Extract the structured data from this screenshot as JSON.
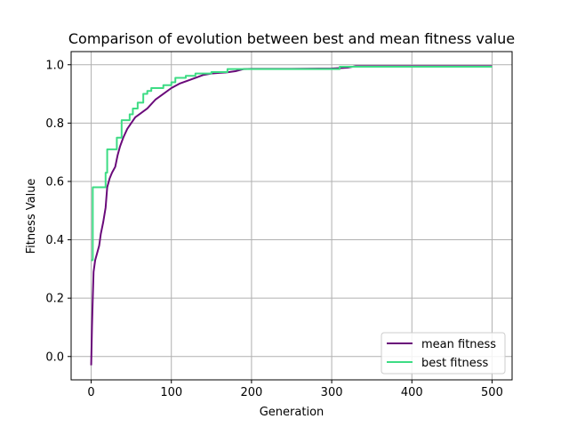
{
  "chart_data": {
    "type": "line",
    "title": "Comparison of evolution between best and mean fitness value",
    "xlabel": "Generation",
    "ylabel": "Fitness Value",
    "xlim": [
      -25,
      525
    ],
    "ylim": [
      -0.08,
      1.045
    ],
    "xticks": [
      0,
      100,
      200,
      300,
      400,
      500
    ],
    "xtick_labels": [
      "0",
      "100",
      "200",
      "300",
      "400",
      "500"
    ],
    "yticks": [
      0.0,
      0.2,
      0.4,
      0.6,
      0.8,
      1.0
    ],
    "ytick_labels": [
      "0.0",
      "0.2",
      "0.4",
      "0.6",
      "0.8",
      "1.0"
    ],
    "grid": true,
    "legend_position": "lower-right",
    "series": [
      {
        "name": "mean fitness",
        "color": "#6a0a7a",
        "step": false,
        "points": [
          [
            0,
            -0.03
          ],
          [
            1,
            0.1
          ],
          [
            2,
            0.2
          ],
          [
            3,
            0.29
          ],
          [
            5,
            0.33
          ],
          [
            8,
            0.36
          ],
          [
            10,
            0.38
          ],
          [
            12,
            0.42
          ],
          [
            15,
            0.46
          ],
          [
            18,
            0.51
          ],
          [
            20,
            0.58
          ],
          [
            23,
            0.61
          ],
          [
            26,
            0.63
          ],
          [
            30,
            0.65
          ],
          [
            33,
            0.69
          ],
          [
            36,
            0.72
          ],
          [
            40,
            0.75
          ],
          [
            45,
            0.78
          ],
          [
            50,
            0.8
          ],
          [
            55,
            0.82
          ],
          [
            60,
            0.83
          ],
          [
            70,
            0.85
          ],
          [
            80,
            0.88
          ],
          [
            90,
            0.9
          ],
          [
            100,
            0.92
          ],
          [
            110,
            0.935
          ],
          [
            120,
            0.945
          ],
          [
            130,
            0.955
          ],
          [
            140,
            0.965
          ],
          [
            150,
            0.97
          ],
          [
            160,
            0.972
          ],
          [
            170,
            0.974
          ],
          [
            180,
            0.978
          ],
          [
            190,
            0.985
          ],
          [
            200,
            0.986
          ],
          [
            250,
            0.986
          ],
          [
            300,
            0.987
          ],
          [
            320,
            0.99
          ],
          [
            330,
            0.995
          ],
          [
            400,
            0.995
          ],
          [
            500,
            0.995
          ]
        ]
      },
      {
        "name": "best fitness",
        "color": "#3ddc84",
        "step": true,
        "points": [
          [
            0,
            0.33
          ],
          [
            2,
            0.58
          ],
          [
            15,
            0.58
          ],
          [
            18,
            0.63
          ],
          [
            20,
            0.71
          ],
          [
            30,
            0.71
          ],
          [
            32,
            0.75
          ],
          [
            37,
            0.75
          ],
          [
            38,
            0.81
          ],
          [
            45,
            0.81
          ],
          [
            48,
            0.83
          ],
          [
            50,
            0.83
          ],
          [
            52,
            0.85
          ],
          [
            55,
            0.85
          ],
          [
            58,
            0.87
          ],
          [
            63,
            0.87
          ],
          [
            65,
            0.9
          ],
          [
            68,
            0.9
          ],
          [
            70,
            0.91
          ],
          [
            73,
            0.91
          ],
          [
            75,
            0.92
          ],
          [
            88,
            0.92
          ],
          [
            90,
            0.93
          ],
          [
            98,
            0.93
          ],
          [
            100,
            0.94
          ],
          [
            103,
            0.94
          ],
          [
            105,
            0.955
          ],
          [
            115,
            0.955
          ],
          [
            118,
            0.962
          ],
          [
            128,
            0.962
          ],
          [
            130,
            0.97
          ],
          [
            148,
            0.97
          ],
          [
            150,
            0.975
          ],
          [
            168,
            0.975
          ],
          [
            170,
            0.985
          ],
          [
            308,
            0.985
          ],
          [
            310,
            0.993
          ],
          [
            500,
            0.993
          ]
        ]
      }
    ]
  }
}
